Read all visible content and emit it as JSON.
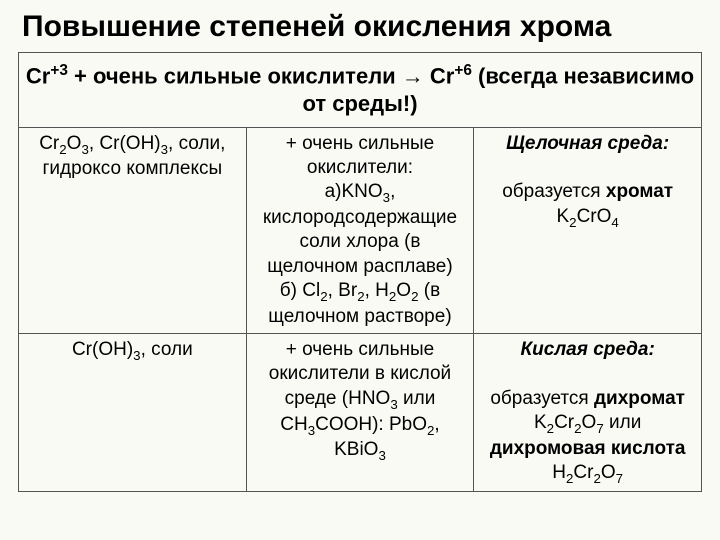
{
  "title": "Повышение степеней окисления хрома",
  "header": {
    "left": "Cr",
    "left_sup": "+3",
    "mid": " + очень сильные окислители → Cr",
    "right_sup": "+6",
    "tail": " (всегда независимо от среды!)"
  },
  "row1": {
    "c1_a": "Cr",
    "c1_b": "O",
    "c1_c": ", Cr(OH)",
    "c1_d": ", соли, гидроксо комплексы",
    "c2_line1": "+ очень сильные окислители:",
    "c2_line2a": "а)KNO",
    "c2_line2b": ", кислородсодержащие соли хлора (в щелочном расплаве)",
    "c2_line3a": "б) Cl",
    "c2_line3b": ", Br",
    "c2_line3c": ", H",
    "c2_line3d": "O",
    "c2_line3e": " (в щелочном растворе)",
    "c3_head": "Щелочная среда:",
    "c3_body_a": "образуется ",
    "c3_body_b": "хромат",
    "c3_body_c": " K",
    "c3_body_d": "CrO"
  },
  "row2": {
    "c1_a": "Cr(OH)",
    "c1_b": ", соли",
    "c2_a": "+ очень сильные окислители в кислой среде (HNO",
    "c2_b": " или CH",
    "c2_c": "COOH): PbO",
    "c2_d": ", KBiO",
    "c3_head": "Кислая среда:",
    "c3_a": "образуется ",
    "c3_b": "дихромат",
    "c3_c": " K",
    "c3_d": "Cr",
    "c3_e": "O",
    "c3_f": " или ",
    "c3_g": "дихромовая кислота",
    "c3_h": " H",
    "c3_i": "Cr",
    "c3_j": "O"
  },
  "colors": {
    "bg": "#fafaf5",
    "border": "#555",
    "text": "#000"
  },
  "fontsize": {
    "title": 30,
    "header": 22,
    "cell": 19
  }
}
